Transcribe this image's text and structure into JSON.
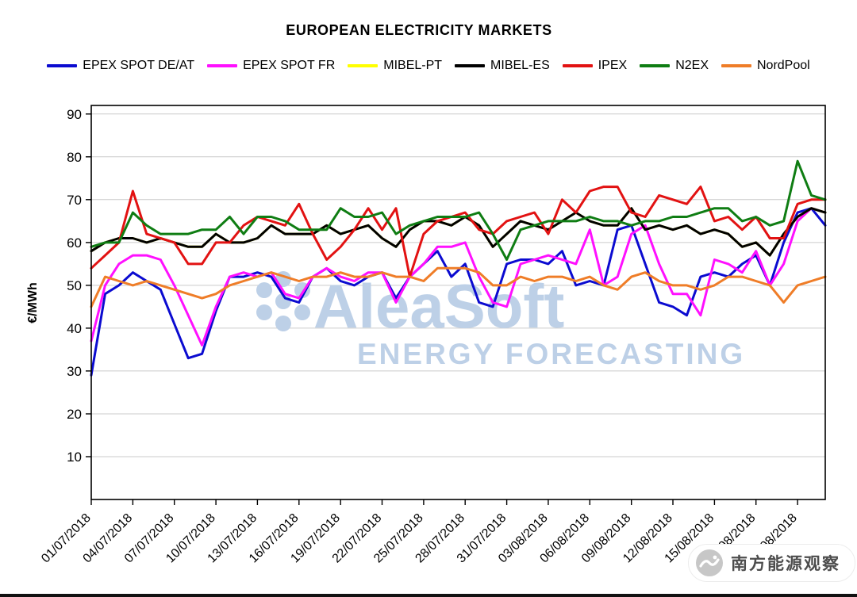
{
  "title": "EUROPEAN ELECTRICITY MARKETS",
  "watermark": {
    "brand": "AleaSoft",
    "tagline": "ENERGY FORECASTING",
    "stamp": "南方能源观察"
  },
  "chart_data": {
    "type": "line",
    "title": "EUROPEAN ELECTRICITY MARKETS",
    "xlabel": "",
    "ylabel": "€/MWh",
    "ylim": [
      0,
      90
    ],
    "yticks": [
      10,
      20,
      30,
      40,
      50,
      60,
      70,
      80,
      90
    ],
    "grid": "horizontal-light-gray",
    "legend_position": "top",
    "x_unit": "daily",
    "x_tick_every": 3,
    "x_tick_labels": [
      "01/07/2018",
      "04/07/2018",
      "07/07/2018",
      "10/07/2018",
      "13/07/2018",
      "16/07/2018",
      "19/07/2018",
      "22/07/2018",
      "25/07/2018",
      "28/07/2018",
      "31/07/2018",
      "03/08/2018",
      "06/08/2018",
      "09/08/2018",
      "12/08/2018",
      "15/08/2018",
      "18/08/2018",
      "21/08/2018"
    ],
    "series": [
      {
        "name": "EPEX SPOT DE/AT",
        "color": "#0b0bd0",
        "values": [
          29,
          48,
          50,
          53,
          51,
          49,
          41,
          33,
          34,
          44,
          52,
          52,
          53,
          52,
          47,
          46,
          52,
          54,
          51,
          50,
          52,
          53,
          47,
          52,
          55,
          58,
          52,
          55,
          46,
          45,
          55,
          56,
          56,
          55,
          58,
          50,
          51,
          50,
          63,
          64,
          55,
          46,
          45,
          43,
          52,
          53,
          52,
          55,
          57,
          50,
          60,
          67,
          68,
          64
        ]
      },
      {
        "name": "EPEX SPOT FR",
        "color": "#ff10ff",
        "values": [
          37,
          50,
          55,
          57,
          57,
          56,
          50,
          43,
          36,
          45,
          52,
          53,
          52,
          53,
          48,
          47,
          52,
          54,
          52,
          51,
          53,
          53,
          46,
          52,
          55,
          59,
          59,
          60,
          52,
          46,
          45,
          55,
          56,
          57,
          56,
          55,
          63,
          50,
          52,
          62,
          64,
          55,
          48,
          48,
          43,
          56,
          55,
          53,
          58,
          50,
          55,
          65,
          68,
          67
        ]
      },
      {
        "name": "MIBEL-PT",
        "color": "#ffff00",
        "values": [
          58,
          60,
          61,
          61,
          60,
          61,
          60,
          59,
          59,
          62,
          60,
          60,
          61,
          64,
          62,
          62,
          62,
          64,
          62,
          63,
          64,
          61,
          59,
          63,
          65,
          65,
          64,
          66,
          64,
          59,
          62,
          65,
          64,
          63,
          65,
          67,
          65,
          64,
          64,
          68,
          63,
          64,
          63,
          64,
          62,
          63,
          62,
          59,
          60,
          57,
          62,
          66,
          68,
          67
        ]
      },
      {
        "name": "MIBEL-ES",
        "color": "#000000",
        "values": [
          58,
          60,
          61,
          61,
          60,
          61,
          60,
          59,
          59,
          62,
          60,
          60,
          61,
          64,
          62,
          62,
          62,
          64,
          62,
          63,
          64,
          61,
          59,
          63,
          65,
          65,
          64,
          66,
          64,
          59,
          62,
          65,
          64,
          63,
          65,
          67,
          65,
          64,
          64,
          68,
          63,
          64,
          63,
          64,
          62,
          63,
          62,
          59,
          60,
          57,
          62,
          66,
          68,
          67
        ]
      },
      {
        "name": "IPEX",
        "color": "#e21212",
        "values": [
          54,
          57,
          60,
          72,
          62,
          61,
          60,
          55,
          55,
          60,
          60,
          64,
          66,
          65,
          64,
          69,
          62,
          56,
          59,
          63,
          68,
          63,
          68,
          52,
          62,
          65,
          66,
          67,
          63,
          62,
          65,
          66,
          67,
          62,
          70,
          67,
          72,
          73,
          73,
          67,
          66,
          71,
          70,
          69,
          73,
          65,
          66,
          63,
          66,
          61,
          61,
          69,
          70,
          70
        ]
      },
      {
        "name": "N2EX",
        "color": "#0f7d13",
        "values": [
          59,
          60,
          60,
          67,
          64,
          62,
          62,
          62,
          63,
          63,
          66,
          62,
          66,
          66,
          65,
          63,
          63,
          63,
          68,
          66,
          66,
          67,
          62,
          64,
          65,
          66,
          66,
          66,
          67,
          62,
          56,
          63,
          64,
          65,
          65,
          65,
          66,
          65,
          65,
          64,
          65,
          65,
          66,
          66,
          67,
          68,
          68,
          65,
          66,
          64,
          65,
          79,
          71,
          70
        ]
      },
      {
        "name": "NordPool",
        "color": "#ef7d28",
        "values": [
          45,
          52,
          51,
          50,
          51,
          50,
          49,
          48,
          47,
          48,
          50,
          51,
          52,
          53,
          52,
          51,
          52,
          52,
          53,
          52,
          52,
          53,
          52,
          52,
          51,
          54,
          54,
          54,
          53,
          50,
          50,
          52,
          51,
          52,
          52,
          51,
          52,
          50,
          49,
          52,
          53,
          51,
          50,
          50,
          49,
          50,
          52,
          52,
          51,
          50,
          46,
          50,
          51,
          52
        ]
      }
    ]
  }
}
